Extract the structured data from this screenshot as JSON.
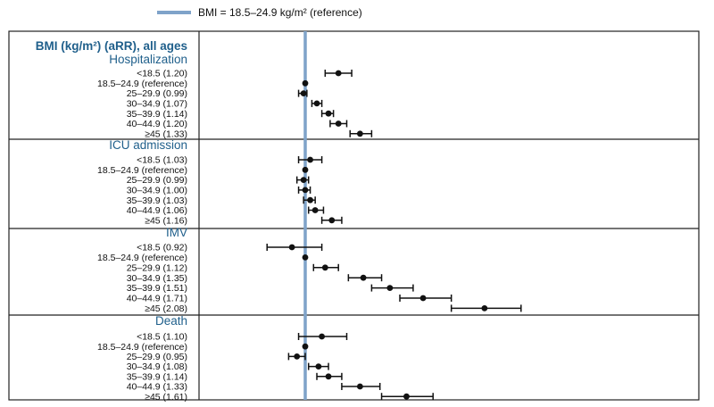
{
  "legend": {
    "label": "BMI = 18.5–24.9 kg/m² (reference)",
    "color": "#7fa3c9"
  },
  "chart_data": {
    "type": "forest",
    "title": "BMI (kg/m²) (aRR), all ages",
    "reference_value": 1.0,
    "xlim": [
      0.5,
      2.75
    ],
    "colors": {
      "reference_line": "#7fa3c9",
      "heading": "#1f5f8b",
      "marks": "#111111"
    },
    "panels": [
      {
        "name": "Hospitalization",
        "rows": [
          {
            "label": "<18.5 (1.20)",
            "est": 1.2,
            "lo": 1.12,
            "hi": 1.28
          },
          {
            "label": "18.5–24.9 (reference)",
            "est": 1.0,
            "lo": 1.0,
            "hi": 1.0
          },
          {
            "label": "25–29.9 (0.99)",
            "est": 0.99,
            "lo": 0.96,
            "hi": 1.01
          },
          {
            "label": "30–34.9 (1.07)",
            "est": 1.07,
            "lo": 1.04,
            "hi": 1.1
          },
          {
            "label": "35–39.9 (1.14)",
            "est": 1.14,
            "lo": 1.1,
            "hi": 1.17
          },
          {
            "label": "40–44.9 (1.20)",
            "est": 1.2,
            "lo": 1.15,
            "hi": 1.25
          },
          {
            "label": "≥45 (1.33)",
            "est": 1.33,
            "lo": 1.27,
            "hi": 1.4
          }
        ]
      },
      {
        "name": "ICU admission",
        "rows": [
          {
            "label": "<18.5 (1.03)",
            "est": 1.03,
            "lo": 0.96,
            "hi": 1.1
          },
          {
            "label": "18.5–24.9 (reference)",
            "est": 1.0,
            "lo": 1.0,
            "hi": 1.0
          },
          {
            "label": "25–29.9 (0.99)",
            "est": 0.99,
            "lo": 0.95,
            "hi": 1.02
          },
          {
            "label": "30–34.9 (1.00)",
            "est": 1.0,
            "lo": 0.96,
            "hi": 1.03
          },
          {
            "label": "35–39.9 (1.03)",
            "est": 1.03,
            "lo": 0.99,
            "hi": 1.06
          },
          {
            "label": "40–44.9 (1.06)",
            "est": 1.06,
            "lo": 1.02,
            "hi": 1.11
          },
          {
            "label": "≥45 (1.16)",
            "est": 1.16,
            "lo": 1.1,
            "hi": 1.22
          }
        ]
      },
      {
        "name": "IMV",
        "rows": [
          {
            "label": "<18.5 (0.92)",
            "est": 0.92,
            "lo": 0.77,
            "hi": 1.1
          },
          {
            "label": "18.5–24.9 (reference)",
            "est": 1.0,
            "lo": 1.0,
            "hi": 1.0
          },
          {
            "label": "25–29.9 (1.12)",
            "est": 1.12,
            "lo": 1.05,
            "hi": 1.2
          },
          {
            "label": "30–34.9 (1.35)",
            "est": 1.35,
            "lo": 1.26,
            "hi": 1.46
          },
          {
            "label": "35–39.9 (1.51)",
            "est": 1.51,
            "lo": 1.4,
            "hi": 1.65
          },
          {
            "label": "40–44.9 (1.71)",
            "est": 1.71,
            "lo": 1.57,
            "hi": 1.88
          },
          {
            "label": "≥45 (2.08)",
            "est": 2.08,
            "lo": 1.88,
            "hi": 2.3
          }
        ]
      },
      {
        "name": "Death",
        "rows": [
          {
            "label": "<18.5 (1.10)",
            "est": 1.1,
            "lo": 0.96,
            "hi": 1.25
          },
          {
            "label": "18.5–24.9 (reference)",
            "est": 1.0,
            "lo": 1.0,
            "hi": 1.0
          },
          {
            "label": "25–29.9 (0.95)",
            "est": 0.95,
            "lo": 0.9,
            "hi": 1.0
          },
          {
            "label": "30–34.9 (1.08)",
            "est": 1.08,
            "lo": 1.02,
            "hi": 1.14
          },
          {
            "label": "35–39.9 (1.14)",
            "est": 1.14,
            "lo": 1.07,
            "hi": 1.22
          },
          {
            "label": "40–44.9 (1.33)",
            "est": 1.33,
            "lo": 1.22,
            "hi": 1.45
          },
          {
            "label": "≥45 (1.61)",
            "est": 1.61,
            "lo": 1.46,
            "hi": 1.77
          }
        ]
      }
    ]
  }
}
